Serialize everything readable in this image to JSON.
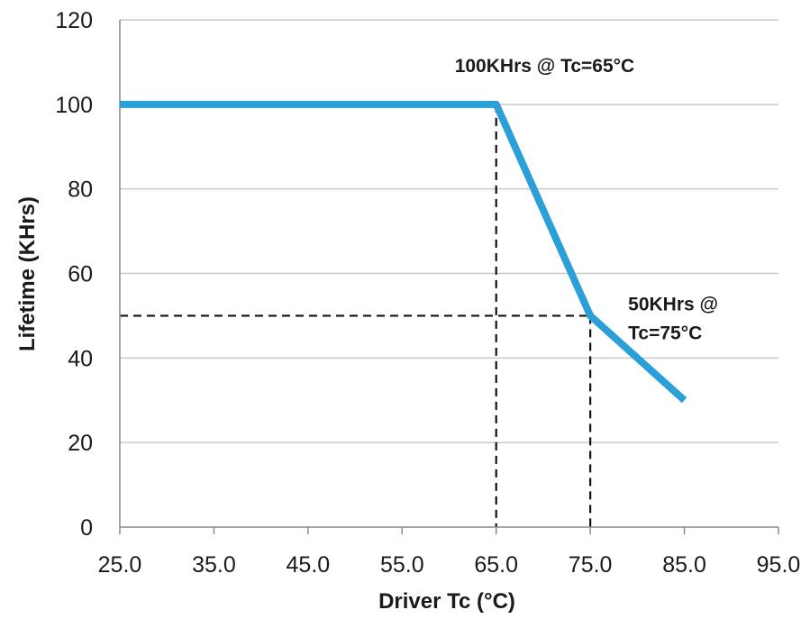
{
  "chart_data": {
    "type": "line",
    "title": "",
    "xlabel": "Driver Tc (°C)",
    "ylabel": "Lifetime (KHrs)",
    "xlim": [
      25,
      95
    ],
    "ylim": [
      0,
      120
    ],
    "x_ticks": [
      "25.0",
      "35.0",
      "45.0",
      "55.0",
      "65.0",
      "75.0",
      "85.0",
      "95.0"
    ],
    "y_ticks": [
      "0",
      "20",
      "40",
      "60",
      "80",
      "100",
      "120"
    ],
    "grid": "horizontal",
    "line_color": "#2a9fd8",
    "series": [
      {
        "x": [
          25,
          65,
          75,
          85
        ],
        "y": [
          100,
          100,
          50,
          30
        ]
      }
    ],
    "reference_points": [
      {
        "x": 65,
        "y": 100
      },
      {
        "x": 75,
        "y": 50
      }
    ],
    "annotations": [
      {
        "lines": [
          "100KHrs @ Tc=65°C"
        ],
        "x": 65,
        "y": 100
      },
      {
        "lines": [
          "50KHrs @",
          "Tc=75°C"
        ],
        "x": 75,
        "y": 50
      }
    ]
  }
}
